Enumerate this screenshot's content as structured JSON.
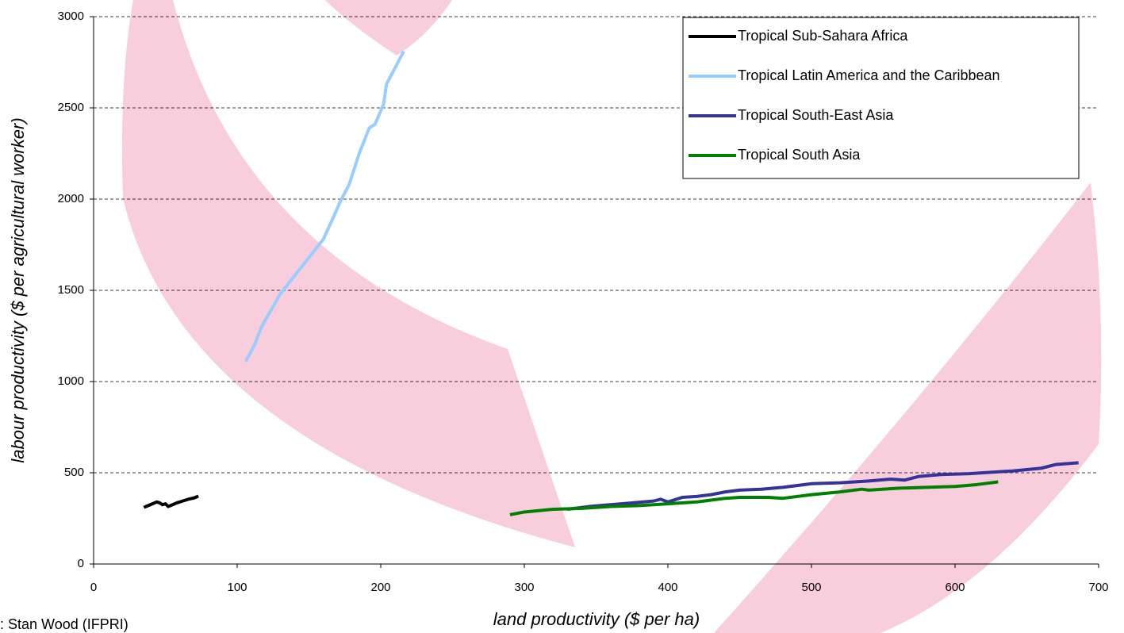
{
  "chart_data": {
    "type": "line",
    "xlabel": "land productivity ($ per ha)",
    "ylabel": "labour productivity ($ per agricultural worker)",
    "source": ": Stan Wood (IFPRI)",
    "xlim": [
      0,
      700
    ],
    "xticks": [
      0,
      100,
      200,
      300,
      400,
      500,
      600,
      700
    ],
    "ylim": [
      0,
      3000
    ],
    "yticks": [
      0,
      500,
      1000,
      1500,
      2000,
      2500,
      3000
    ],
    "grid": true,
    "legend": "upper right",
    "series": [
      {
        "name": "Tropical Sub-Sahara Africa",
        "color": "#000000",
        "x": [
          35,
          38,
          41,
          44,
          46,
          48,
          50,
          52,
          55,
          58,
          62,
          66,
          70,
          73
        ],
        "values": [
          310,
          320,
          330,
          340,
          335,
          325,
          330,
          315,
          325,
          335,
          345,
          355,
          362,
          372
        ]
      },
      {
        "name": "Tropical Latin America and the Caribbean",
        "color": "#99ccff",
        "x": [
          106,
          112,
          117,
          122,
          130,
          140,
          150,
          160,
          167,
          172,
          178,
          185,
          192,
          196,
          202,
          204,
          210,
          216
        ],
        "values": [
          1110,
          1200,
          1300,
          1370,
          1480,
          1580,
          1680,
          1780,
          1900,
          1990,
          2080,
          2250,
          2390,
          2410,
          2520,
          2630,
          2720,
          2810
        ]
      },
      {
        "name": "Tropical South-East Asia",
        "color": "#333399",
        "x": [
          330,
          345,
          360,
          375,
          390,
          395,
          400,
          410,
          420,
          430,
          440,
          450,
          465,
          480,
          500,
          520,
          540,
          555,
          565,
          575,
          590,
          610,
          640,
          660,
          670,
          686
        ],
        "values": [
          300,
          315,
          325,
          335,
          345,
          355,
          340,
          365,
          370,
          380,
          395,
          405,
          410,
          420,
          440,
          445,
          455,
          465,
          460,
          480,
          490,
          495,
          510,
          525,
          545,
          555
        ]
      },
      {
        "name": "Tropical South Asia",
        "color": "#008000",
        "x": [
          290,
          300,
          320,
          340,
          360,
          380,
          400,
          420,
          440,
          450,
          470,
          480,
          500,
          520,
          535,
          540,
          560,
          580,
          600,
          615,
          630
        ],
        "values": [
          270,
          285,
          300,
          305,
          315,
          320,
          330,
          340,
          360,
          365,
          365,
          360,
          380,
          395,
          410,
          405,
          415,
          420,
          425,
          435,
          450
        ]
      }
    ]
  }
}
